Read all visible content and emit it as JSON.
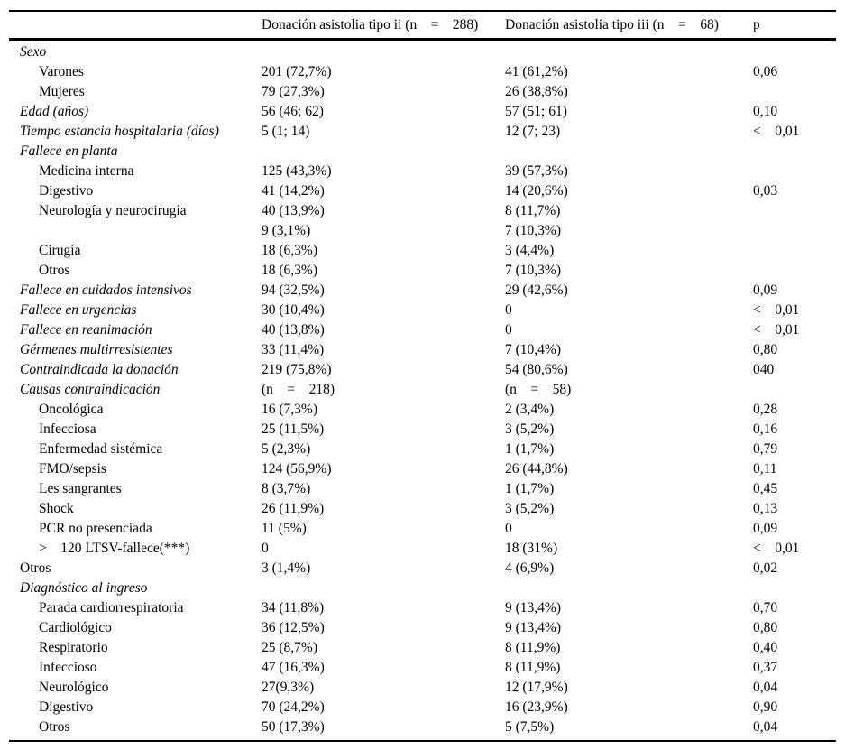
{
  "table": {
    "header": {
      "col_label": "",
      "col_tipo_ii": "Donación asistolia tipo ii (n    =    288)",
      "col_tipo_iii": "Donación asistolia tipo iii (n    =    68)",
      "col_p": "p"
    },
    "rows": [
      {
        "label": "Sexo",
        "italic": true,
        "indent": false,
        "c2": "",
        "c3": "",
        "p": ""
      },
      {
        "label": "Varones",
        "italic": false,
        "indent": true,
        "c2": "201 (72,7%)",
        "c3": "41 (61,2%)",
        "p": "0,06"
      },
      {
        "label": "Mujeres",
        "italic": false,
        "indent": true,
        "c2": "79 (27,3%)",
        "c3": "26 (38,8%)",
        "p": ""
      },
      {
        "label": "Edad (años)",
        "italic": true,
        "indent": false,
        "c2": "56 (46; 62)",
        "c3": "57 (51; 61)",
        "p": "0,10"
      },
      {
        "label": "Tiempo estancia hospitalaria (días)",
        "italic": true,
        "indent": false,
        "c2": "5 (1; 14)",
        "c3": "12 (7; 23)",
        "p": "<    0,01"
      },
      {
        "label": "Fallece en planta",
        "italic": true,
        "indent": false,
        "c2": "",
        "c3": "",
        "p": ""
      },
      {
        "label": "Medicina interna",
        "italic": false,
        "indent": true,
        "c2": "125 (43,3%)",
        "c3": "39 (57,3%)",
        "p": ""
      },
      {
        "label": "Digestivo",
        "italic": false,
        "indent": true,
        "c2": "41 (14,2%)",
        "c3": "14 (20,6%)",
        "p": "0,03"
      },
      {
        "label": "Neurología y neurocirugía",
        "italic": false,
        "indent": true,
        "c2": "40 (13,9%)",
        "c3": "8 (11,7%)",
        "p": ""
      },
      {
        "label": "",
        "italic": false,
        "indent": true,
        "c2": "9 (3,1%)",
        "c3": "7 (10,3%)",
        "p": ""
      },
      {
        "label": "Cirugía",
        "italic": false,
        "indent": true,
        "c2": "18 (6,3%)",
        "c3": "3 (4,4%)",
        "p": ""
      },
      {
        "label": "Otros",
        "italic": false,
        "indent": true,
        "c2": "18 (6,3%)",
        "c3": "7 (10,3%)",
        "p": ""
      },
      {
        "label": "Fallece en cuidados intensivos",
        "italic": true,
        "indent": false,
        "c2": "94 (32,5%)",
        "c3": "29 (42,6%)",
        "p": "0,09"
      },
      {
        "label": "Fallece en urgencias",
        "italic": true,
        "indent": false,
        "c2": "30 (10,4%)",
        "c3": "0",
        "p": "<    0,01"
      },
      {
        "label": "Fallece en reanimación",
        "italic": true,
        "indent": false,
        "c2": "40 (13,8%)",
        "c3": "0",
        "p": "<    0,01"
      },
      {
        "label": "Gérmenes multirresistentes",
        "italic": true,
        "indent": false,
        "c2": "33 (11,4%)",
        "c3": "7 (10,4%)",
        "p": "0,80"
      },
      {
        "label": "Contraindicada la donación",
        "italic": true,
        "indent": false,
        "c2": "219 (75,8%)",
        "c3": "54 (80,6%)",
        "p": "040"
      },
      {
        "label": "Causas contraindicación",
        "italic": true,
        "indent": false,
        "c2": "(n    =    218)",
        "c3": "(n    =    58)",
        "p": ""
      },
      {
        "label": "Oncológica",
        "italic": false,
        "indent": true,
        "c2": "16 (7,3%)",
        "c3": "2 (3,4%)",
        "p": "0,28"
      },
      {
        "label": "Infecciosa",
        "italic": false,
        "indent": true,
        "c2": "25 (11,5%)",
        "c3": "3 (5,2%)",
        "p": "0,16"
      },
      {
        "label": "Enfermedad sistémica",
        "italic": false,
        "indent": true,
        "c2": "5 (2,3%)",
        "c3": "1 (1,7%)",
        "p": "0,79"
      },
      {
        "label": "FMO/sepsis",
        "italic": false,
        "indent": true,
        "c2": "124 (56,9%)",
        "c3": "26 (44,8%)",
        "p": "0,11"
      },
      {
        "label": "Les sangrantes",
        "italic": false,
        "indent": true,
        "c2": "8 (3,7%)",
        "c3": "1 (1,7%)",
        "p": "0,45"
      },
      {
        "label": "Shock",
        "italic": false,
        "indent": true,
        "c2": "26 (11,9%)",
        "c3": "3 (5,2%)",
        "p": "0,13"
      },
      {
        "label": "PCR no presenciada",
        "italic": false,
        "indent": true,
        "c2": "11 (5%)",
        "c3": "0",
        "p": "0,09"
      },
      {
        "label": ">    120 LTSV-fallece(***)",
        "italic": false,
        "indent": true,
        "c2": "0",
        "c3": "18 (31%)",
        "p": "<    0,01"
      },
      {
        "label": "Otros",
        "italic": false,
        "indent": false,
        "c2": "3 (1,4%)",
        "c3": "4 (6,9%)",
        "p": "0,02"
      },
      {
        "label": "Diagnóstico al ingreso",
        "italic": true,
        "indent": false,
        "c2": "",
        "c3": "",
        "p": ""
      },
      {
        "label": "Parada cardiorrespiratoria",
        "italic": false,
        "indent": true,
        "c2": "34 (11,8%)",
        "c3": "9 (13,4%)",
        "p": "0,70"
      },
      {
        "label": "Cardiológico",
        "italic": false,
        "indent": true,
        "c2": "36 (12,5%)",
        "c3": "9 (13,4%)",
        "p": "0,80"
      },
      {
        "label": "Respiratorio",
        "italic": false,
        "indent": true,
        "c2": "25 (8,7%)",
        "c3": "8 (11,9%)",
        "p": "0,40"
      },
      {
        "label": "Infeccioso",
        "italic": false,
        "indent": true,
        "c2": "47 (16,3%)",
        "c3": "8 (11,9%)",
        "p": "0,37"
      },
      {
        "label": "Neurológico",
        "italic": false,
        "indent": true,
        "c2": "27(9,3%)",
        "c3": "12 (17,9%)",
        "p": "0,04"
      },
      {
        "label": "Digestivo",
        "italic": false,
        "indent": true,
        "c2": "70 (24,2%)",
        "c3": "16 (23,9%)",
        "p": "0,90"
      },
      {
        "label": "Otros",
        "italic": false,
        "indent": true,
        "c2": "50 (17,3%)",
        "c3": "5 (7,5%)",
        "p": "0,04"
      }
    ]
  }
}
